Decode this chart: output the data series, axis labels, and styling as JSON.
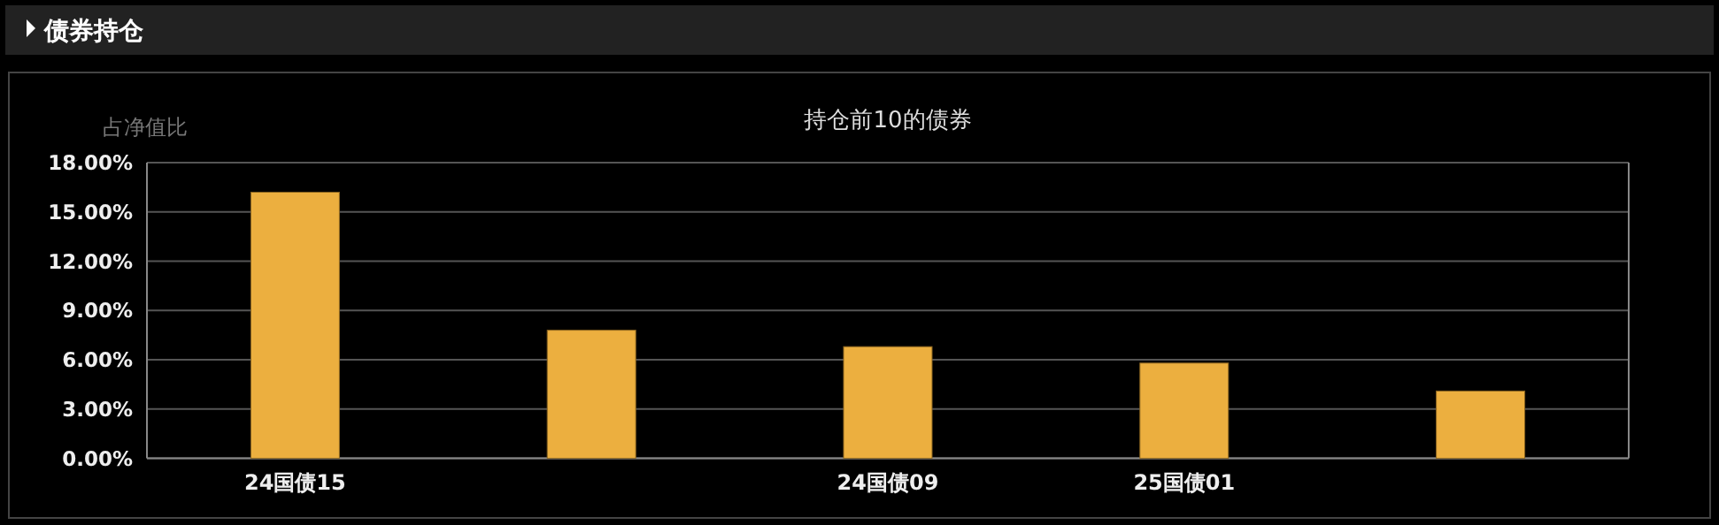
{
  "chart_data": {
    "type": "bar",
    "title": "持仓前10的债券",
    "ylabel": "占净值比",
    "annotations": [
      "债券持仓"
    ],
    "categories": [
      "24国债15",
      null,
      "24国债09",
      "25国债01",
      null
    ],
    "values": [
      16.2,
      7.8,
      6.8,
      5.8,
      4.1
    ],
    "color": "#ecaf3f",
    "ylim": [
      0,
      18
    ],
    "yticks": [
      {
        "value": 0,
        "label": "0.00%"
      },
      {
        "value": 3,
        "label": "3.00%"
      },
      {
        "value": 6,
        "label": "6.00%"
      },
      {
        "value": 9,
        "label": "9.00%"
      },
      {
        "value": 12,
        "label": "12.00%"
      },
      {
        "value": 15,
        "label": "15.00%"
      },
      {
        "value": 18,
        "label": "18.00%"
      }
    ],
    "grid": "y"
  }
}
